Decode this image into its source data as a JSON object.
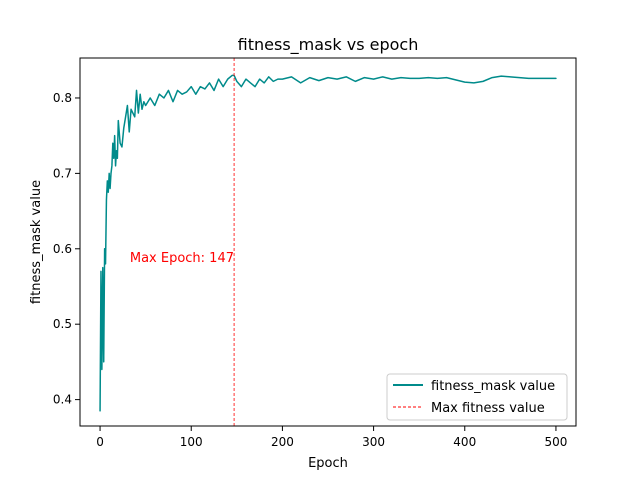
{
  "chart_data": {
    "type": "line",
    "title": "fitness_mask vs epoch",
    "xlabel": "Epoch",
    "ylabel": "fitness_mask value",
    "xlim": [
      -22,
      522
    ],
    "ylim": [
      0.365,
      0.853
    ],
    "xticks": [
      0,
      100,
      200,
      300,
      400,
      500
    ],
    "yticks": [
      0.4,
      0.5,
      0.6,
      0.7,
      0.8
    ],
    "xtick_labels": [
      "0",
      "100",
      "200",
      "300",
      "400",
      "500"
    ],
    "ytick_labels": [
      "0.4",
      "0.5",
      "0.6",
      "0.7",
      "0.8"
    ],
    "grid": false,
    "legend_position": "bottom-right",
    "series": [
      {
        "name": "fitness_mask value",
        "color": "#008b8b",
        "x": [
          0,
          1,
          2,
          3,
          4,
          5,
          6,
          7,
          8,
          9,
          10,
          11,
          12,
          13,
          14,
          15,
          16,
          17,
          18,
          19,
          20,
          22,
          24,
          26,
          28,
          30,
          32,
          34,
          36,
          38,
          40,
          42,
          44,
          46,
          48,
          50,
          55,
          60,
          65,
          70,
          75,
          80,
          85,
          90,
          95,
          100,
          105,
          110,
          115,
          120,
          125,
          130,
          135,
          140,
          145,
          147,
          150,
          155,
          160,
          165,
          170,
          175,
          180,
          185,
          190,
          195,
          200,
          210,
          220,
          230,
          240,
          250,
          260,
          270,
          280,
          290,
          300,
          310,
          320,
          330,
          340,
          350,
          360,
          370,
          380,
          390,
          400,
          410,
          420,
          430,
          440,
          450,
          460,
          470,
          480,
          490,
          500
        ],
        "y": [
          0.385,
          0.57,
          0.44,
          0.575,
          0.45,
          0.6,
          0.58,
          0.665,
          0.69,
          0.675,
          0.7,
          0.68,
          0.7,
          0.71,
          0.74,
          0.72,
          0.75,
          0.71,
          0.73,
          0.72,
          0.77,
          0.74,
          0.735,
          0.76,
          0.775,
          0.79,
          0.755,
          0.785,
          0.78,
          0.775,
          0.81,
          0.78,
          0.805,
          0.785,
          0.795,
          0.79,
          0.8,
          0.79,
          0.805,
          0.8,
          0.81,
          0.795,
          0.81,
          0.805,
          0.808,
          0.815,
          0.805,
          0.815,
          0.812,
          0.82,
          0.81,
          0.825,
          0.815,
          0.825,
          0.83,
          0.83,
          0.822,
          0.815,
          0.825,
          0.82,
          0.815,
          0.825,
          0.82,
          0.828,
          0.822,
          0.825,
          0.825,
          0.828,
          0.82,
          0.827,
          0.823,
          0.827,
          0.825,
          0.828,
          0.822,
          0.827,
          0.825,
          0.828,
          0.825,
          0.827,
          0.826,
          0.826,
          0.827,
          0.826,
          0.827,
          0.824,
          0.821,
          0.82,
          0.822,
          0.827,
          0.829,
          0.828,
          0.827,
          0.826,
          0.826,
          0.826,
          0.826
        ]
      },
      {
        "name": "Max fitness value",
        "color": "#ff0000",
        "line_style": "dashed",
        "vertical_line_x": 147
      }
    ],
    "annotations": [
      {
        "text": "Max Epoch: 147",
        "x": 147,
        "y": 0.585,
        "color": "#ff0000"
      }
    ]
  }
}
